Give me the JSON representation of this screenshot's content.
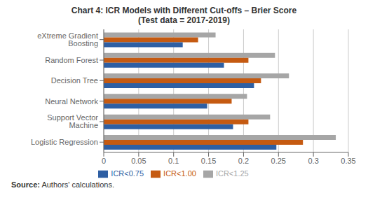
{
  "chart_data": {
    "type": "bar",
    "orientation": "horizontal",
    "title": "Chart 4: ICR Models with Different Cut-offs – Brier Score\n(Test data = 2017-2019)",
    "categories": [
      "eXtreme Gradient Boosting",
      "Random Forest",
      "Decision Tree",
      "Neural Network",
      "Support Vector Machine",
      "Logistic Regression"
    ],
    "series": [
      {
        "name": "ICR<1.25",
        "color": "#a6a6a6",
        "values": [
          0.16,
          0.245,
          0.265,
          0.205,
          0.238,
          0.332
        ]
      },
      {
        "name": "ICR<1.00",
        "color": "#c55a11",
        "values": [
          0.135,
          0.207,
          0.225,
          0.183,
          0.207,
          0.285
        ]
      },
      {
        "name": "ICR<0.75",
        "color": "#2e5fa3",
        "values": [
          0.113,
          0.172,
          0.215,
          0.148,
          0.185,
          0.247
        ]
      }
    ],
    "xlim": [
      0,
      0.35
    ],
    "xticks": [
      0,
      0.05,
      0.1,
      0.15,
      0.2,
      0.25,
      0.3,
      0.35
    ],
    "grid": true,
    "legend": "bottom",
    "annotations": [
      "Source: Authors' calculations."
    ]
  }
}
